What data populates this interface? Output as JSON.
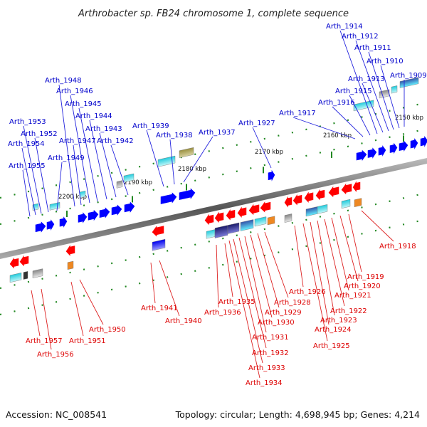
{
  "title": "Arthrobacter sp. FB24 chromosome 1, complete sequence",
  "footer": {
    "accession": "Accession: NC_008541",
    "topology": "Topology: circular; Length: 4,698,945 bp; Genes: 4,214"
  },
  "colors": {
    "forward_gene": "#0000ff",
    "reverse_gene": "#ff0000",
    "forward_label": "#0000cc",
    "reverse_label": "#dd0000",
    "backbone": "#888888",
    "tick": "#228822"
  },
  "scale_ticks": [
    "2150 kbp",
    "2160 kbp",
    "2170 kbp",
    "2180 kbp",
    "2190 kbp",
    "2200 kbp"
  ],
  "forward_genes": [
    "Arth_1909",
    "Arth_1910",
    "Arth_1911",
    "Arth_1912",
    "Arth_1913",
    "Arth_1914",
    "Arth_1915",
    "Arth_1916",
    "Arth_1917",
    "Arth_1927",
    "Arth_1937",
    "Arth_1938",
    "Arth_1939",
    "Arth_1942",
    "Arth_1943",
    "Arth_1944",
    "Arth_1945",
    "Arth_1946",
    "Arth_1947",
    "Arth_1948",
    "Arth_1949",
    "Arth_1952",
    "Arth_1953",
    "Arth_1954",
    "Arth_1955"
  ],
  "reverse_genes": [
    "Arth_1918",
    "Arth_1919",
    "Arth_1920",
    "Arth_1921",
    "Arth_1922",
    "Arth_1923",
    "Arth_1924",
    "Arth_1925",
    "Arth_1926",
    "Arth_1928",
    "Arth_1929",
    "Arth_1930",
    "Arth_1931",
    "Arth_1932",
    "Arth_1933",
    "Arth_1934",
    "Arth_1935",
    "Arth_1936",
    "Arth_1940",
    "Arth_1941",
    "Arth_1950",
    "Arth_1951",
    "Arth_1956",
    "Arth_1957"
  ]
}
